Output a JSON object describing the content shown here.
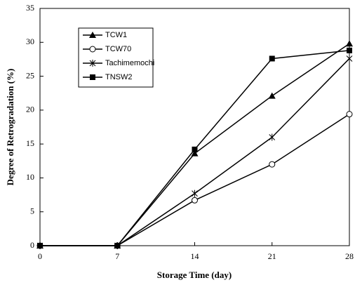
{
  "chart_data": {
    "type": "line",
    "x_label": "Storage Time (day)",
    "y_label": "Degree of Retrogradation (%)",
    "x": [
      0,
      7,
      14,
      21,
      28
    ],
    "series": [
      {
        "name": "TCW1",
        "color": "#000000",
        "marker": "triangle",
        "values": [
          0,
          0,
          13.6,
          22.1,
          29.8
        ]
      },
      {
        "name": "TCW70",
        "color": "#000000",
        "marker": "circle",
        "values": [
          0,
          0,
          6.7,
          12,
          19.4
        ]
      },
      {
        "name": "Tachimemochi",
        "color": "#000000",
        "marker": "asterisk",
        "values": [
          0,
          0,
          7.7,
          16,
          27.6
        ]
      },
      {
        "name": "TNSW2",
        "color": "#000000",
        "marker": "square",
        "values": [
          0,
          0,
          14.2,
          27.6,
          28.8
        ]
      }
    ],
    "xlim": [
      0,
      28
    ],
    "xticks": [
      0,
      7,
      14,
      21,
      28
    ],
    "ylim": [
      0,
      35
    ],
    "yticks": [
      0,
      5,
      10,
      15,
      20,
      25,
      30,
      35
    ],
    "grid": false,
    "legend": "upper left"
  }
}
